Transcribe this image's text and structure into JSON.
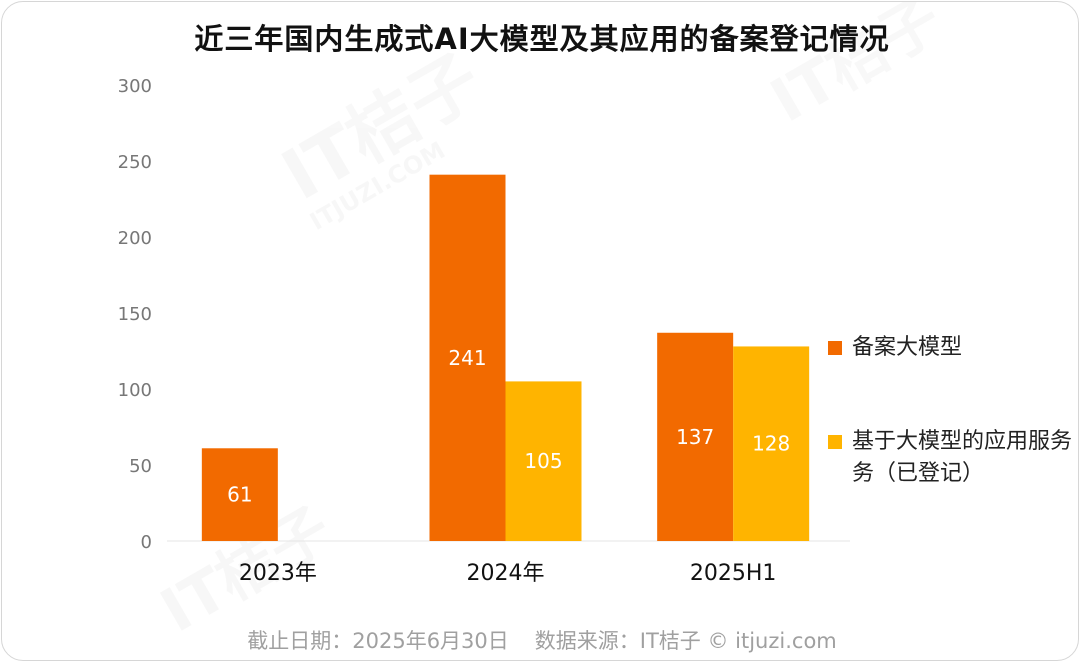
{
  "chart_data": {
    "type": "bar",
    "title": "近三年国内生成式AI大模型及其应用的备案登记情况",
    "categories": [
      "2023年",
      "2024年",
      "2025H1"
    ],
    "series": [
      {
        "name": "备案大模型",
        "values": [
          61,
          241,
          137
        ],
        "color": "#F26A00"
      },
      {
        "name": "基于大模型的应用服务（已登记）",
        "values": [
          null,
          105,
          128
        ],
        "color": "#FFB400"
      }
    ],
    "ylim": [
      0,
      300
    ],
    "yticks": [
      0,
      50,
      100,
      150,
      200,
      250,
      300
    ],
    "xlabel": "",
    "ylabel": "",
    "legend_position": "right",
    "grid": false
  },
  "legend": {
    "item1": "备案大模型",
    "item2_line1": "基于大模型的应用服务",
    "item2_line2": "务（已登记）"
  },
  "footer": {
    "date_text": "截止日期：2025年6月30日",
    "source_text": "数据来源：IT桔子 © itjuzi.com"
  },
  "watermark": {
    "brand": "IT桔子",
    "site": "ITJUZI.COM"
  }
}
